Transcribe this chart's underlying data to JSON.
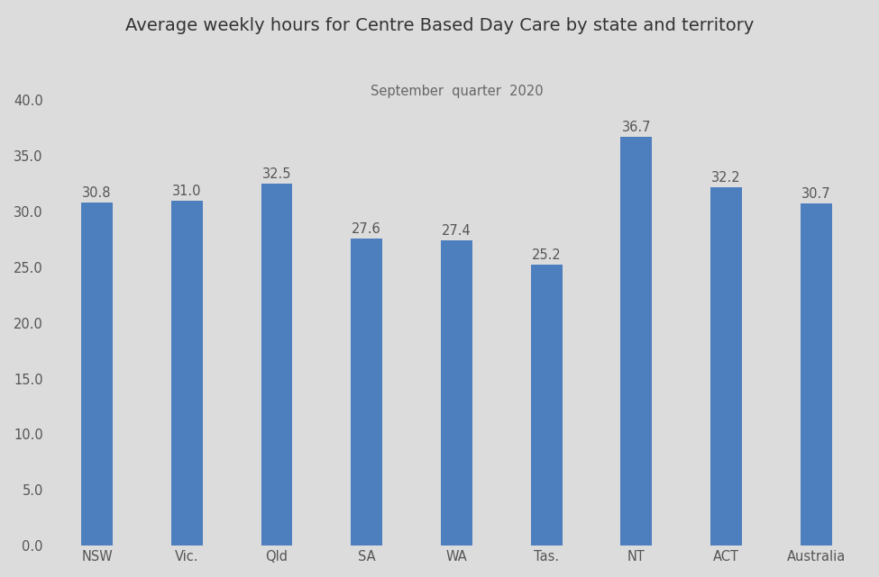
{
  "title": "Average weekly hours for Centre Based Day Care by state and territory",
  "subtitle": "September  quarter  2020",
  "categories": [
    "NSW",
    "Vic.",
    "Qld",
    "SA",
    "WA",
    "Tas.",
    "NT",
    "ACT",
    "Australia"
  ],
  "values": [
    30.8,
    31.0,
    32.5,
    27.6,
    27.4,
    25.2,
    36.7,
    32.2,
    30.7
  ],
  "bar_color": "#4d7ebe",
  "background_color": "#DCDCDC",
  "ylim": [
    0,
    40
  ],
  "yticks": [
    0.0,
    5.0,
    10.0,
    15.0,
    20.0,
    25.0,
    30.0,
    35.0,
    40.0
  ],
  "title_fontsize": 14,
  "subtitle_fontsize": 10.5,
  "tick_fontsize": 10.5,
  "label_fontsize": 10.5,
  "bar_width": 0.35
}
